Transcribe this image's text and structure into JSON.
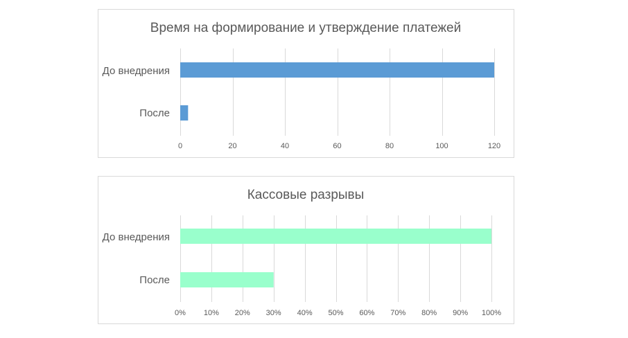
{
  "chart_data": [
    {
      "type": "bar",
      "orientation": "horizontal",
      "title": "Время на формирование и утверждение платежей",
      "categories": [
        "До внедрения",
        "После"
      ],
      "values": [
        120,
        3
      ],
      "xlim": [
        0,
        120
      ],
      "ticks": [
        0,
        20,
        40,
        60,
        80,
        100,
        120
      ],
      "tick_labels": [
        "0",
        "20",
        "40",
        "60",
        "80",
        "100",
        "120"
      ],
      "grid": true,
      "legend": "none",
      "color": "#5b9bd5"
    },
    {
      "type": "bar",
      "orientation": "horizontal",
      "title": "Кассовые разрывы",
      "categories": [
        "До внедрения",
        "После"
      ],
      "values": [
        1.0,
        0.3
      ],
      "xlim": [
        0,
        1
      ],
      "ticks": [
        0,
        0.1,
        0.2,
        0.3,
        0.4,
        0.5,
        0.6,
        0.7,
        0.8,
        0.9,
        1.0
      ],
      "tick_labels": [
        "0%",
        "10%",
        "20%",
        "30%",
        "40%",
        "50%",
        "60%",
        "70%",
        "80%",
        "90%",
        "100%"
      ],
      "grid": true,
      "legend": "none",
      "color": "#99ffcc"
    }
  ]
}
